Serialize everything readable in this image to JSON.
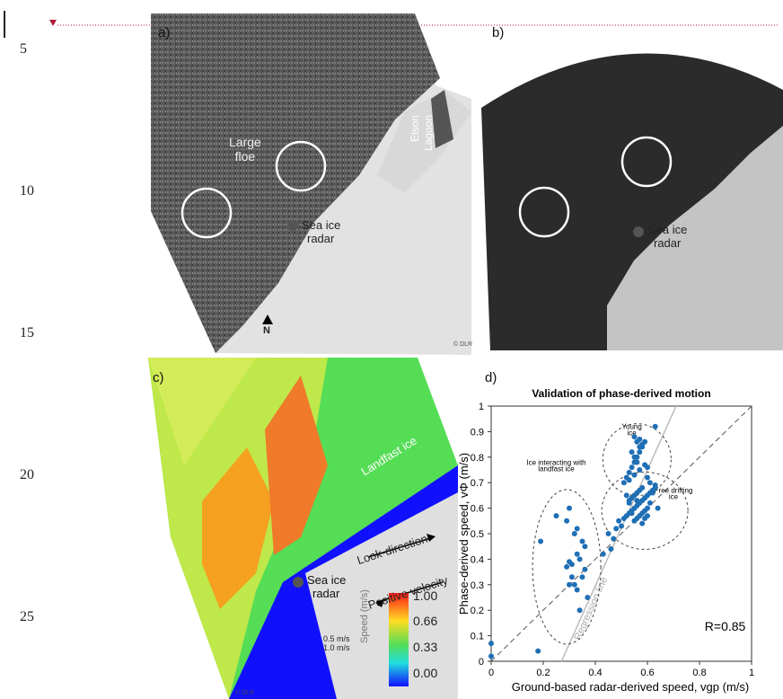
{
  "line_numbers": [
    "5",
    "10",
    "15",
    "20",
    "25"
  ],
  "panels": {
    "a": {
      "label": "a)",
      "floe_label": [
        "Large",
        "floe"
      ],
      "lagoon_label": [
        "Elson",
        "Lagoon"
      ],
      "radar_label": [
        "Sea ice",
        "radar"
      ],
      "north_label": "N",
      "credit": "© DLR"
    },
    "b": {
      "label": "b)",
      "radar_label": [
        "Sea ice",
        "radar"
      ]
    },
    "c": {
      "label": "c)",
      "landfast_label": "Landfast ice",
      "radar_label": [
        "Sea ice",
        "radar"
      ],
      "look_direction": "Look-direction",
      "positive_velocity": "Positive velocity",
      "scale_labels": [
        "0.5 m/s",
        "1.0 m/s"
      ],
      "colorbar_title": "Speed (m/s)",
      "colorbar_ticks": [
        "1.00",
        "0.66",
        "0.33",
        "0.00"
      ],
      "credit": "© DLR",
      "colors": {
        "low": "#0a1aff",
        "mid": "#22e0e0",
        "green": "#66dd44",
        "high": "#ff2020"
      }
    },
    "d": {
      "label": "d)"
    }
  },
  "chart_data": {
    "type": "scatter",
    "title": "Validation of phase-derived motion",
    "xlabel": "Ground-based radar-derived speed, vgp (m/s)",
    "ylabel": "Phase-derived speed, vΦ (m/s)",
    "xlim": [
      0,
      1
    ],
    "ylim": [
      0,
      1
    ],
    "xticks": [
      "0",
      "0.2",
      "0.4",
      "0.6",
      "0.8",
      "1"
    ],
    "yticks": [
      "0",
      "0.1",
      "0.2",
      "0.3",
      "0.4",
      "0.5",
      "0.6",
      "0.7",
      "0.8",
      "0.9",
      "1"
    ],
    "annotations": {
      "young": [
        "Young",
        "ice"
      ],
      "interacting": [
        "Ice interacting with",
        "landfast ice"
      ],
      "free": [
        "Free drifting",
        "ice"
      ],
      "regression": "Regression line",
      "r": "R=0.85"
    },
    "point_color": "#1f6fb5",
    "x": [
      0.0,
      0.0,
      0.18,
      0.3,
      0.19,
      0.25,
      0.29,
      0.33,
      0.32,
      0.35,
      0.36,
      0.33,
      0.34,
      0.31,
      0.36,
      0.35,
      0.3,
      0.33,
      0.37,
      0.34,
      0.32,
      0.31,
      0.29,
      0.3,
      0.43,
      0.46,
      0.47,
      0.45,
      0.48,
      0.5,
      0.49,
      0.51,
      0.52,
      0.53,
      0.54,
      0.55,
      0.56,
      0.57,
      0.58,
      0.59,
      0.6,
      0.61,
      0.62,
      0.63,
      0.55,
      0.56,
      0.57,
      0.58,
      0.59,
      0.6,
      0.61,
      0.53,
      0.54,
      0.55,
      0.56,
      0.57,
      0.58,
      0.59,
      0.6,
      0.52,
      0.53,
      0.54,
      0.55,
      0.56,
      0.57,
      0.58,
      0.59,
      0.6,
      0.51,
      0.53,
      0.55,
      0.57,
      0.59,
      0.61,
      0.63,
      0.55,
      0.56,
      0.57,
      0.54,
      0.55,
      0.56,
      0.57,
      0.58,
      0.53,
      0.56,
      0.59,
      0.62,
      0.63,
      0.64,
      0.52,
      0.54,
      0.58,
      0.6
    ],
    "y": [
      0.07,
      0.02,
      0.04,
      0.6,
      0.47,
      0.57,
      0.55,
      0.52,
      0.5,
      0.47,
      0.45,
      0.42,
      0.4,
      0.38,
      0.36,
      0.33,
      0.3,
      0.28,
      0.25,
      0.2,
      0.3,
      0.33,
      0.37,
      0.39,
      0.42,
      0.44,
      0.48,
      0.5,
      0.52,
      0.53,
      0.55,
      0.56,
      0.57,
      0.58,
      0.59,
      0.6,
      0.61,
      0.62,
      0.63,
      0.64,
      0.65,
      0.66,
      0.67,
      0.68,
      0.55,
      0.56,
      0.57,
      0.58,
      0.59,
      0.6,
      0.62,
      0.63,
      0.64,
      0.65,
      0.66,
      0.67,
      0.68,
      0.56,
      0.57,
      0.72,
      0.74,
      0.76,
      0.78,
      0.8,
      0.82,
      0.84,
      0.86,
      0.76,
      0.7,
      0.71,
      0.73,
      0.75,
      0.77,
      0.7,
      0.69,
      0.88,
      0.86,
      0.84,
      0.82,
      0.8,
      0.78,
      0.87,
      0.85,
      0.62,
      0.63,
      0.64,
      0.66,
      0.92,
      0.6,
      0.65,
      0.58,
      0.54,
      0.72
    ]
  }
}
